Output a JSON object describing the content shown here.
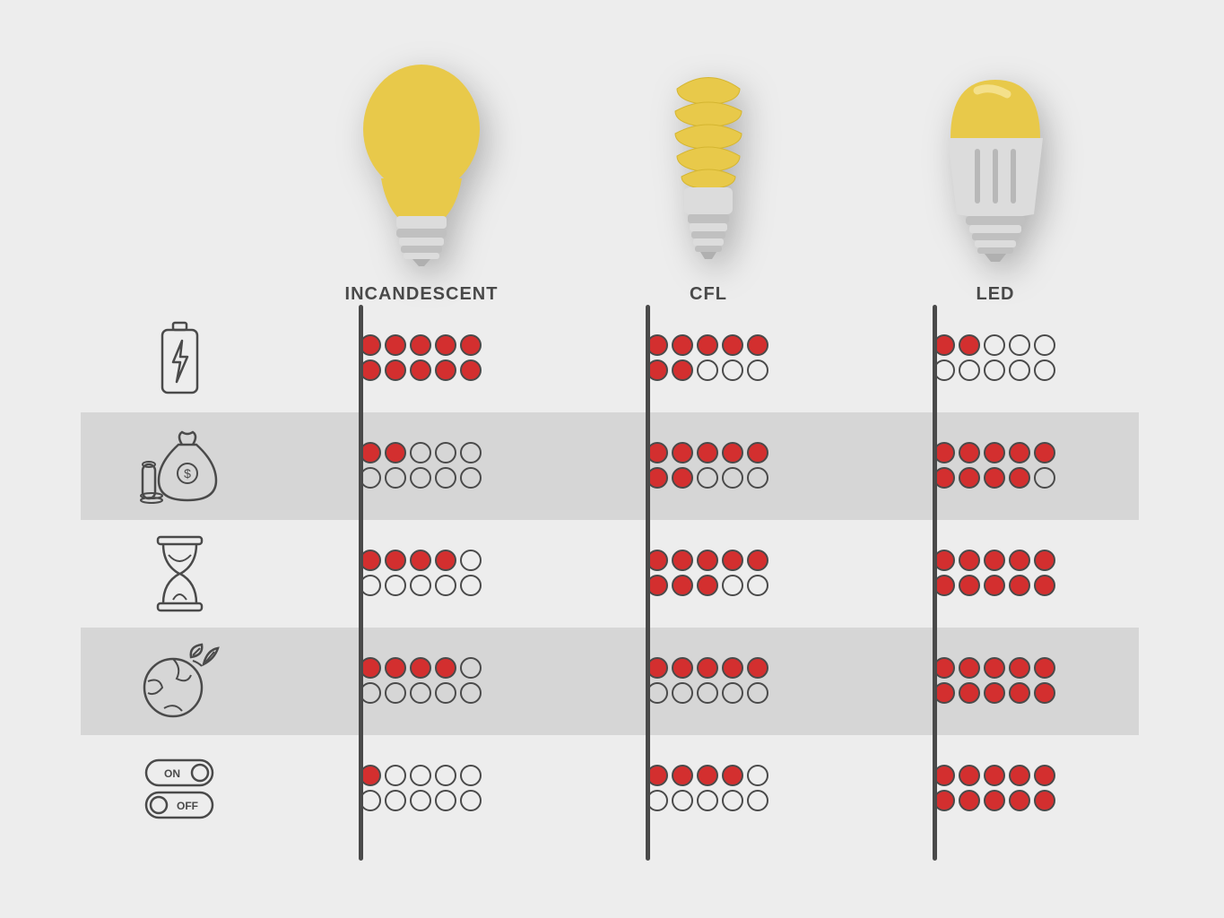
{
  "background_color": "#ededed",
  "alt_row_color": "#d6d6d6",
  "divider_color": "#4a4a4a",
  "dot_filled_color": "#d32f2f",
  "dot_border_color": "#4a4a4a",
  "bulb_yellow": "#e8c94a",
  "bulb_gray": "#c9c9c9",
  "bulb_gray_light": "#dcdcdc",
  "label_color": "#4a4a4a",
  "label_fontsize": 20,
  "columns": [
    {
      "id": "incandescent",
      "label": "INCANDESCENT"
    },
    {
      "id": "cfl",
      "label": "CFL"
    },
    {
      "id": "led",
      "label": "LED"
    }
  ],
  "metrics": [
    {
      "id": "energy",
      "icon": "battery-lightning",
      "alt": false
    },
    {
      "id": "cost",
      "icon": "money-bag",
      "alt": true
    },
    {
      "id": "lifespan",
      "icon": "hourglass",
      "alt": false
    },
    {
      "id": "eco",
      "icon": "earth-leaf",
      "alt": true
    },
    {
      "id": "switch",
      "icon": "on-off-toggle",
      "alt": false
    }
  ],
  "scores": {
    "energy": {
      "incandescent": 10,
      "cfl": 7,
      "led": 2
    },
    "cost": {
      "incandescent": 2,
      "cfl": 7,
      "led": 9
    },
    "lifespan": {
      "incandescent": 4,
      "cfl": 8,
      "led": 10
    },
    "eco": {
      "incandescent": 4,
      "cfl": 5,
      "led": 10
    },
    "switch": {
      "incandescent": 1,
      "cfl": 4,
      "led": 10
    }
  },
  "max_score": 10
}
